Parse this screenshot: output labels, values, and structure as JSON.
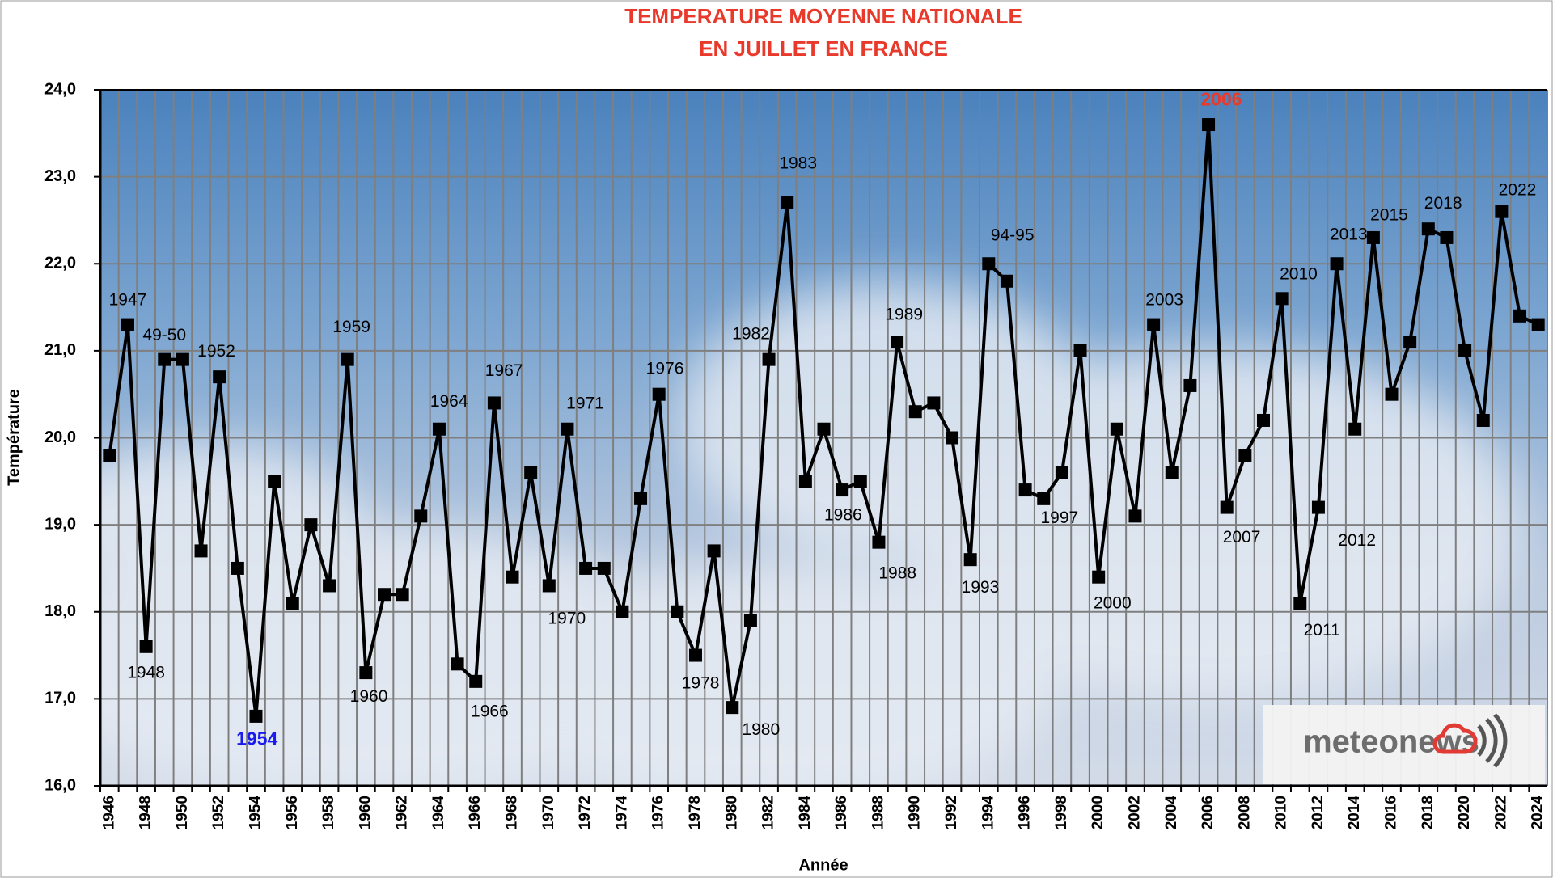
{
  "chart_data": {
    "type": "line",
    "title": [
      "TEMPERATURE MOYENNE NATIONALE",
      "EN JUILLET EN FRANCE"
    ],
    "title_color": "#e8392b",
    "x_label": "Année",
    "y_label": "Température",
    "categories": [
      "1946",
      null,
      "1948",
      null,
      "1950",
      null,
      "1952",
      null,
      "1954",
      null,
      "1956",
      null,
      "1958",
      null,
      "1960",
      null,
      "1962",
      null,
      "1964",
      null,
      "1966",
      null,
      "1968",
      null,
      "1970",
      null,
      "1972",
      null,
      "1974",
      null,
      "1976",
      null,
      "1978",
      null,
      "1980",
      null,
      "1982",
      null,
      "1984",
      null,
      "1986",
      null,
      "1988",
      null,
      "1990",
      null,
      "1992",
      null,
      "1994",
      null,
      "1996",
      null,
      "1998",
      null,
      "2000",
      null,
      "2002",
      null,
      "2004",
      null,
      "2006",
      null,
      "2008",
      null,
      "2010",
      null,
      "2012",
      null,
      "2014",
      null,
      "2016",
      null,
      "2018",
      null,
      "2020",
      null,
      "2022",
      null,
      "2024"
    ],
    "values": [
      19.8,
      21.3,
      17.6,
      20.9,
      20.9,
      18.7,
      20.7,
      18.5,
      16.8,
      19.5,
      18.1,
      19.0,
      18.3,
      20.9,
      17.3,
      18.2,
      18.2,
      19.1,
      20.1,
      17.4,
      17.2,
      20.4,
      18.4,
      19.6,
      18.3,
      20.1,
      18.5,
      18.5,
      18.0,
      19.3,
      20.5,
      18.0,
      17.5,
      18.7,
      16.9,
      17.9,
      20.9,
      22.7,
      19.5,
      20.1,
      19.4,
      19.5,
      18.8,
      21.1,
      20.3,
      20.4,
      20.0,
      18.6,
      22.0,
      21.8,
      19.4,
      19.3,
      19.6,
      21.0,
      18.4,
      20.1,
      19.1,
      21.3,
      19.6,
      20.6,
      23.6,
      19.2,
      19.8,
      20.2,
      21.6,
      18.1,
      19.2,
      22.0,
      20.1,
      22.3,
      20.5,
      21.1,
      22.4,
      22.3,
      21.0,
      20.2,
      22.6,
      21.4,
      21.3
    ],
    "color": "#000000",
    "ylim": [
      16,
      24
    ],
    "yticks": [
      {
        "value": 16,
        "label": "16,0"
      },
      {
        "value": 17,
        "label": "17,0"
      },
      {
        "value": 18,
        "label": "18,0"
      },
      {
        "value": 19,
        "label": "19,0"
      },
      {
        "value": 20,
        "label": "20,0"
      },
      {
        "value": 21,
        "label": "21,0"
      },
      {
        "value": 22,
        "label": "22,0"
      },
      {
        "value": 23,
        "label": "23,0"
      },
      {
        "value": 24,
        "label": "24,0"
      }
    ],
    "grid": true,
    "annotations": [
      {
        "text": "1947"
      },
      {
        "text": "49-50"
      },
      {
        "text": "1952"
      },
      {
        "text": "1959"
      },
      {
        "text": "1964"
      },
      {
        "text": "1967"
      },
      {
        "text": "1971"
      },
      {
        "text": "1976"
      },
      {
        "text": "1983"
      },
      {
        "text": "1982"
      },
      {
        "text": "1989"
      },
      {
        "text": "94-95"
      },
      {
        "text": "2003"
      },
      {
        "text": "2006",
        "color": "#e8392b"
      },
      {
        "text": "2010"
      },
      {
        "text": "2013"
      },
      {
        "text": "2015"
      },
      {
        "text": "2018"
      },
      {
        "text": "2022"
      },
      {
        "text": "1948"
      },
      {
        "text": "1954",
        "color": "#1a1aee"
      },
      {
        "text": "1960"
      },
      {
        "text": "1966"
      },
      {
        "text": "1970"
      },
      {
        "text": "1978"
      },
      {
        "text": "1980"
      },
      {
        "text": "1986"
      },
      {
        "text": "1988"
      },
      {
        "text": "1993"
      },
      {
        "text": "1997"
      },
      {
        "text": "2000"
      },
      {
        "text": "2007"
      },
      {
        "text": "2011"
      },
      {
        "text": "2012"
      }
    ],
    "logo": "meteonews"
  }
}
